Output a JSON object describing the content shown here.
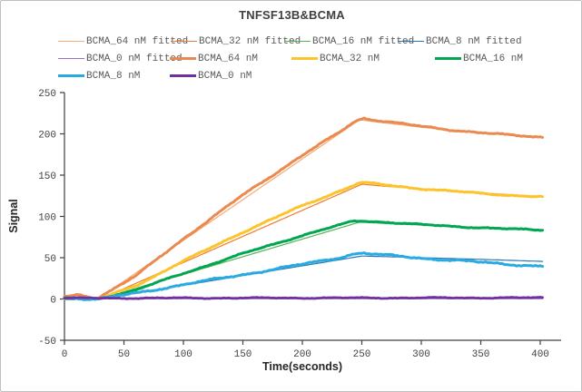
{
  "chart_data": {
    "type": "line",
    "title": "TNFSF13B&BCMA",
    "xlabel": "Time(seconds)",
    "ylabel": "Signal",
    "xlim": [
      0,
      417
    ],
    "ylim": [
      -50,
      250
    ],
    "xticks": [
      0,
      50,
      100,
      150,
      200,
      250,
      300,
      350,
      400
    ],
    "yticks": [
      -50,
      0,
      50,
      100,
      150,
      200,
      250
    ],
    "grid": false,
    "legend_position": "top",
    "axis_color": "#404040",
    "series": [
      {
        "name": "BCMA_64 nM fitted",
        "color": "#f4ac76",
        "kind": "fitted",
        "width": 1.2,
        "noise": 0,
        "points": [
          [
            28,
            0
          ],
          [
            248,
            217
          ],
          [
            265,
            214
          ],
          [
            300,
            208
          ],
          [
            350,
            201
          ],
          [
            402,
            195.5
          ]
        ]
      },
      {
        "name": "BCMA_32 nM fitted",
        "color": "#ed7d31",
        "kind": "fitted",
        "width": 1.2,
        "noise": 0,
        "points": [
          [
            30,
            0
          ],
          [
            250,
            139
          ],
          [
            270,
            136.5
          ],
          [
            300,
            133.5
          ],
          [
            350,
            128.5
          ],
          [
            402,
            124
          ]
        ]
      },
      {
        "name": "BCMA_16 nM fitted",
        "color": "#5ab557",
        "kind": "fitted",
        "width": 1.2,
        "noise": 0,
        "points": [
          [
            30,
            0
          ],
          [
            248,
            93
          ],
          [
            270,
            91.5
          ],
          [
            300,
            89.5
          ],
          [
            350,
            86.5
          ],
          [
            402,
            84
          ]
        ]
      },
      {
        "name": "BCMA_8 nM fitted",
        "color": "#2e75b6",
        "kind": "fitted",
        "width": 1.2,
        "noise": 0,
        "points": [
          [
            30,
            0
          ],
          [
            250,
            52
          ],
          [
            270,
            51.3
          ],
          [
            300,
            50
          ],
          [
            350,
            48
          ],
          [
            402,
            45.5
          ]
        ]
      },
      {
        "name": "BCMA_0 nM fitted",
        "color": "#9472c4",
        "kind": "fitted",
        "width": 1.2,
        "noise": 0,
        "points": [
          [
            0,
            0.3
          ],
          [
            402,
            0.3
          ]
        ]
      },
      {
        "name": "BCMA_64 nM",
        "color": "#ea8a51",
        "kind": "data",
        "width": 3,
        "noise": 1.2,
        "points": [
          [
            0,
            2.5
          ],
          [
            6,
            3.5
          ],
          [
            12,
            5
          ],
          [
            18,
            3.5
          ],
          [
            24,
            1.2
          ],
          [
            28,
            1.5
          ],
          [
            60,
            28
          ],
          [
            100,
            73
          ],
          [
            150,
            126
          ],
          [
            200,
            174
          ],
          [
            230,
            201
          ],
          [
            245,
            216
          ],
          [
            252,
            219
          ],
          [
            262,
            216.5
          ],
          [
            280,
            213
          ],
          [
            300,
            209
          ],
          [
            330,
            204
          ],
          [
            360,
            200
          ],
          [
            402,
            196
          ]
        ]
      },
      {
        "name": "BCMA_32 nM",
        "color": "#fdc32b",
        "kind": "data",
        "width": 3,
        "noise": 1.1,
        "points": [
          [
            0,
            1
          ],
          [
            12,
            1.5
          ],
          [
            24,
            0.3
          ],
          [
            30,
            0.5
          ],
          [
            60,
            16
          ],
          [
            100,
            46
          ],
          [
            150,
            81
          ],
          [
            200,
            113
          ],
          [
            235,
            133
          ],
          [
            248,
            140.5
          ],
          [
            255,
            140.5
          ],
          [
            270,
            138
          ],
          [
            300,
            133.5
          ],
          [
            340,
            129
          ],
          [
            370,
            126
          ],
          [
            402,
            123.5
          ]
        ]
      },
      {
        "name": "BCMA_16 nM",
        "color": "#00a651",
        "kind": "data",
        "width": 3,
        "noise": 1.0,
        "points": [
          [
            0,
            0.8
          ],
          [
            12,
            1.2
          ],
          [
            24,
            0.2
          ],
          [
            30,
            0.5
          ],
          [
            60,
            11
          ],
          [
            100,
            31
          ],
          [
            150,
            55
          ],
          [
            200,
            77
          ],
          [
            230,
            89
          ],
          [
            243,
            94.5
          ],
          [
            252,
            94.5
          ],
          [
            270,
            93
          ],
          [
            300,
            90
          ],
          [
            340,
            87
          ],
          [
            370,
            85
          ],
          [
            402,
            83.5
          ]
        ]
      },
      {
        "name": "BCMA_8 nM",
        "color": "#29abe2",
        "kind": "data",
        "width": 3,
        "noise": 1.5,
        "points": [
          [
            0,
            0.5
          ],
          [
            12,
            0.8
          ],
          [
            24,
            0
          ],
          [
            30,
            0.3
          ],
          [
            60,
            7
          ],
          [
            100,
            17.5
          ],
          [
            150,
            29.5
          ],
          [
            200,
            42
          ],
          [
            230,
            50
          ],
          [
            245,
            55
          ],
          [
            252,
            55.5
          ],
          [
            265,
            53.5
          ],
          [
            280,
            52
          ],
          [
            300,
            49.5
          ],
          [
            330,
            46.5
          ],
          [
            360,
            43.5
          ],
          [
            380,
            41.5
          ],
          [
            402,
            39.5
          ]
        ]
      },
      {
        "name": "BCMA_0 nM",
        "color": "#7030a0",
        "kind": "data",
        "width": 2.8,
        "noise": 0.9,
        "points": [
          [
            0,
            1
          ],
          [
            402,
            1.5
          ]
        ]
      }
    ]
  }
}
